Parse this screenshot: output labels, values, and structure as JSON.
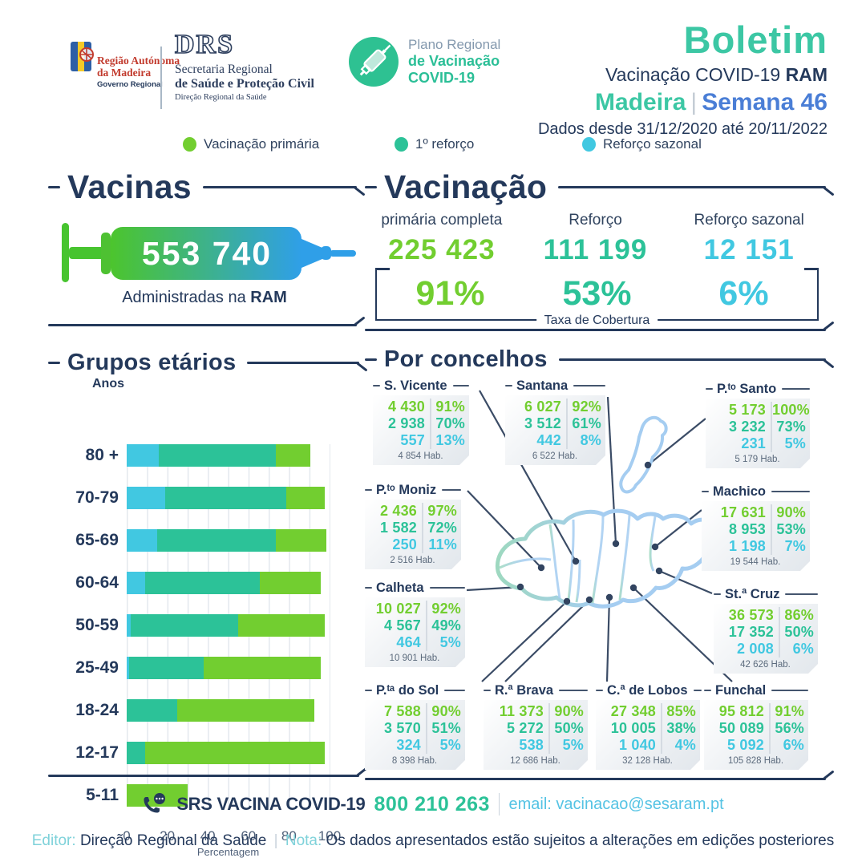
{
  "palette": {
    "navy": "#24395b",
    "green": "#72ce30",
    "teal": "#2cc298",
    "cyan": "#41c8e1",
    "blue": "#4a7ed6",
    "mint": "#3cc7a4",
    "lightblue": "#55c3e4",
    "paleteal": "#7fd2da",
    "grayblue": "#8499ae",
    "mapblue": "#a5cdf1",
    "mapgreen": "#9ed8c0",
    "red": "#c23b2e"
  },
  "header": {
    "ram_logo": {
      "line1": "Região Autónoma",
      "line2": "da Madeira",
      "line3": "Governo Regional"
    },
    "drs_logo": {
      "acronym": "DRS",
      "line1": "Secretaria Regional",
      "line2": "de Saúde e Proteção Civil",
      "line3": "Direção Regional da Saúde"
    },
    "plano_logo": {
      "line1": "Plano Regional",
      "line2": "de Vacinação",
      "line3": "COVID-19"
    },
    "title": "Boletim",
    "subtitle": "Vacinação COVID-19 ",
    "subtitle_bold": "RAM",
    "region": "Madeira",
    "sep": "|",
    "week": "Semana 46",
    "dates": "Dados desde 31/12/2020 até 20/11/2022"
  },
  "legend": {
    "items": [
      {
        "label": "Vacinação primária",
        "color": "#72ce30"
      },
      {
        "label": "1º reforço",
        "color": "#2cc298"
      },
      {
        "label": "Reforço sazonal",
        "color": "#41c8e1"
      }
    ]
  },
  "vacinas": {
    "title": "Vacinas",
    "total": "553 740",
    "caption": "Administradas na ",
    "caption_bold": "RAM"
  },
  "vacinacao": {
    "title": "Vacinação",
    "columns": [
      {
        "label": "primária completa",
        "value": "225 423",
        "pct": "91%"
      },
      {
        "label": "Reforço",
        "value": "111 199",
        "pct": "53%"
      },
      {
        "label": "Reforço sazonal",
        "value": "12 151",
        "pct": "6%"
      }
    ],
    "bracket_label": "Taxa de Cobertura"
  },
  "chart_data": {
    "type": "bar",
    "orientation": "horizontal",
    "title": "Grupos etários",
    "ylabel": "Anos",
    "xlabel": "Percentagem",
    "xlim": [
      0,
      100
    ],
    "xticks": [
      0,
      20,
      40,
      60,
      80,
      100
    ],
    "grid": true,
    "categories": [
      "80 +",
      "70-79",
      "65-69",
      "60-64",
      "50-59",
      "25-49",
      "18-24",
      "12-17",
      "5-11"
    ],
    "series": [
      {
        "name": "Vacinação primária",
        "color": "#72ce30",
        "values": [
          91,
          98,
          99,
          96,
          98,
          96,
          93,
          98,
          30
        ]
      },
      {
        "name": "1º reforço",
        "color": "#2cc298",
        "values": [
          74,
          79,
          74,
          66,
          55,
          38,
          25,
          9,
          0
        ]
      },
      {
        "name": "Reforço sazonal",
        "color": "#41c8e1",
        "values": [
          16,
          19,
          15,
          9,
          2,
          1,
          0,
          0,
          0
        ]
      }
    ],
    "note": "overlapping left-aligned bars; values are % coverage per age group"
  },
  "concelhos": {
    "title": "Por concelhos",
    "items": [
      {
        "name": "S. Vicente",
        "primary": "4 430",
        "primary_pct": "91%",
        "boost": "2 938",
        "boost_pct": "70%",
        "seasonal": "557",
        "seasonal_pct": "13%",
        "hab": "4 854 Hab."
      },
      {
        "name": "Santana",
        "primary": "6 027",
        "primary_pct": "92%",
        "boost": "3 512",
        "boost_pct": "61%",
        "seasonal": "442",
        "seasonal_pct": "8%",
        "hab": "6 522 Hab."
      },
      {
        "name": "P.ᵗᵒ Santo",
        "primary": "5 173",
        "primary_pct": "100%",
        "boost": "3 232",
        "boost_pct": "73%",
        "seasonal": "231",
        "seasonal_pct": "5%",
        "hab": "5 179 Hab."
      },
      {
        "name": "P.ᵗᵒ Moniz",
        "primary": "2 436",
        "primary_pct": "97%",
        "boost": "1 582",
        "boost_pct": "72%",
        "seasonal": "250",
        "seasonal_pct": "11%",
        "hab": "2 516 Hab."
      },
      {
        "name": "Machico",
        "primary": "17 631",
        "primary_pct": "90%",
        "boost": "8 953",
        "boost_pct": "53%",
        "seasonal": "1 198",
        "seasonal_pct": "7%",
        "hab": "19 544 Hab."
      },
      {
        "name": "Calheta",
        "primary": "10 027",
        "primary_pct": "92%",
        "boost": "4 567",
        "boost_pct": "49%",
        "seasonal": "464",
        "seasonal_pct": "5%",
        "hab": "10 901 Hab."
      },
      {
        "name": "St.ª Cruz",
        "primary": "36 573",
        "primary_pct": "86%",
        "boost": "17 352",
        "boost_pct": "50%",
        "seasonal": "2 008",
        "seasonal_pct": "6%",
        "hab": "42 626 Hab."
      },
      {
        "name": "P.ᵗᵃ do Sol",
        "primary": "7 588",
        "primary_pct": "90%",
        "boost": "3 570",
        "boost_pct": "51%",
        "seasonal": "324",
        "seasonal_pct": "5%",
        "hab": "8 398 Hab."
      },
      {
        "name": "R.ª Brava",
        "primary": "11 373",
        "primary_pct": "90%",
        "boost": "5 272",
        "boost_pct": "50%",
        "seasonal": "538",
        "seasonal_pct": "5%",
        "hab": "12 686 Hab."
      },
      {
        "name": "C.ª de Lobos",
        "primary": "27 348",
        "primary_pct": "85%",
        "boost": "10 005",
        "boost_pct": "38%",
        "seasonal": "1 040",
        "seasonal_pct": "4%",
        "hab": "32 128 Hab."
      },
      {
        "name": "Funchal",
        "primary": "95 812",
        "primary_pct": "91%",
        "boost": "50 089",
        "boost_pct": "56%",
        "seasonal": "5 092",
        "seasonal_pct": "6%",
        "hab": "105 828 Hab."
      }
    ]
  },
  "footer": {
    "label": "SRS VACINA COVID-19",
    "phone": "800 210 263",
    "email": "email: vacinacao@sesaram.pt"
  },
  "editor": {
    "label": "Editor:",
    "value": "Direção Regional da Saúde",
    "note_label": "Nota:",
    "note": "Os dados apresentados estão sujeitos a alterações em edições posteriores"
  }
}
